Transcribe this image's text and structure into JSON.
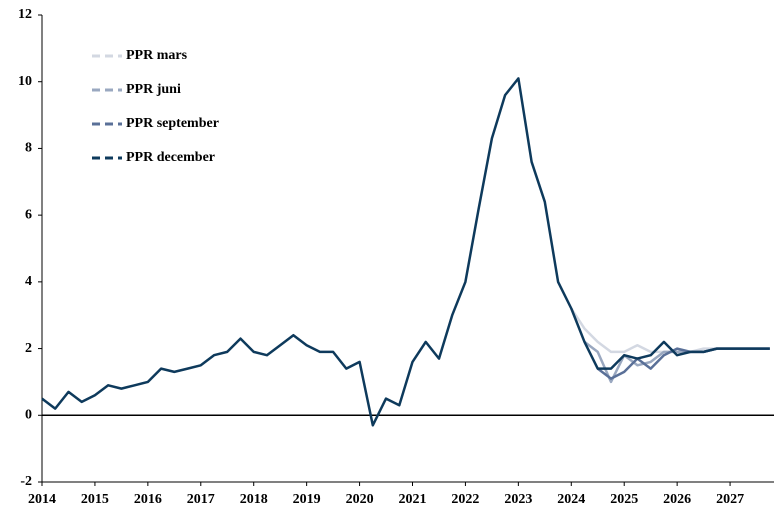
{
  "chart_data": {
    "type": "line",
    "x": [
      2014,
      2014.25,
      2014.5,
      2014.75,
      2015,
      2015.25,
      2015.5,
      2015.75,
      2016,
      2016.25,
      2016.5,
      2016.75,
      2017,
      2017.25,
      2017.5,
      2017.75,
      2018,
      2018.25,
      2018.5,
      2018.75,
      2019,
      2019.25,
      2019.5,
      2019.75,
      2020,
      2020.25,
      2020.5,
      2020.75,
      2021,
      2021.25,
      2021.5,
      2021.75,
      2022,
      2022.25,
      2022.5,
      2022.75,
      2023,
      2023.25,
      2023.5,
      2023.75,
      2024,
      2024.25,
      2024.5,
      2024.75,
      2025,
      2025.25,
      2025.5,
      2025.75,
      2026,
      2026.25,
      2026.5,
      2026.75,
      2027,
      2027.25,
      2027.5,
      2027.75
    ],
    "series": [
      {
        "name": "PPR mars",
        "color": "#d3d8e2",
        "values": [
          null,
          null,
          null,
          null,
          null,
          null,
          null,
          null,
          null,
          null,
          null,
          null,
          null,
          null,
          null,
          null,
          null,
          null,
          null,
          null,
          null,
          null,
          null,
          null,
          null,
          null,
          null,
          null,
          null,
          null,
          null,
          null,
          null,
          null,
          null,
          null,
          null,
          null,
          null,
          null,
          3.2,
          2.6,
          2.2,
          1.9,
          1.9,
          2.1,
          1.9,
          1.9,
          1.9,
          1.9,
          2.0,
          2.0,
          2.0,
          2.0,
          2.0,
          2.0
        ]
      },
      {
        "name": "PPR juni",
        "color": "#9aa8c0",
        "values": [
          null,
          null,
          null,
          null,
          null,
          null,
          null,
          null,
          null,
          null,
          null,
          null,
          null,
          null,
          null,
          null,
          null,
          null,
          null,
          null,
          null,
          null,
          null,
          null,
          null,
          null,
          null,
          null,
          null,
          null,
          null,
          null,
          null,
          null,
          null,
          null,
          null,
          null,
          null,
          null,
          null,
          2.2,
          1.9,
          1.0,
          1.8,
          1.5,
          1.6,
          1.9,
          1.9,
          1.9,
          1.9,
          2.0,
          2.0,
          2.0,
          2.0,
          2.0
        ]
      },
      {
        "name": "PPR september",
        "color": "#5a7098",
        "values": [
          null,
          null,
          null,
          null,
          null,
          null,
          null,
          null,
          null,
          null,
          null,
          null,
          null,
          null,
          null,
          null,
          null,
          null,
          null,
          null,
          null,
          null,
          null,
          null,
          null,
          null,
          null,
          null,
          null,
          null,
          null,
          null,
          null,
          null,
          null,
          null,
          null,
          null,
          null,
          null,
          null,
          null,
          1.4,
          1.1,
          1.3,
          1.7,
          1.4,
          1.8,
          2.0,
          1.9,
          1.9,
          2.0,
          2.0,
          2.0,
          2.0,
          2.0
        ]
      },
      {
        "name": "PPR december",
        "color": "#0e3a5c",
        "values": [
          0.5,
          0.2,
          0.7,
          0.4,
          0.6,
          0.9,
          0.8,
          0.9,
          1.0,
          1.4,
          1.3,
          1.4,
          1.5,
          1.8,
          1.9,
          2.3,
          1.9,
          1.8,
          2.1,
          2.4,
          2.1,
          1.9,
          1.9,
          1.4,
          1.6,
          -0.3,
          0.5,
          0.3,
          1.6,
          2.2,
          1.7,
          3.0,
          4.0,
          6.2,
          8.3,
          9.6,
          10.1,
          7.6,
          6.4,
          4.0,
          3.2,
          2.2,
          1.4,
          1.4,
          1.8,
          1.7,
          1.8,
          2.2,
          1.8,
          1.9,
          1.9,
          2.0,
          2.0,
          2.0,
          2.0,
          2.0
        ]
      }
    ],
    "xlim": [
      2014,
      2027.83
    ],
    "xticks": [
      2014,
      2015,
      2016,
      2017,
      2018,
      2019,
      2020,
      2021,
      2022,
      2023,
      2024,
      2025,
      2026,
      2027
    ],
    "ylim": [
      -2,
      12
    ],
    "yticks": [
      -2,
      0,
      2,
      4,
      6,
      8,
      10,
      12
    ],
    "legend": "upper left"
  }
}
